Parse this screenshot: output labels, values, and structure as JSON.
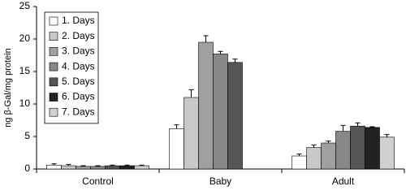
{
  "chart_data": {
    "type": "bar",
    "y_label": "ng β-Gal/mg protein",
    "categories": [
      "Control",
      "Baby",
      "Adult"
    ],
    "series": [
      {
        "name": "1. Days",
        "color": "#ffffff",
        "values": [
          0.6,
          6.2,
          2.0
        ],
        "errors": [
          0.2,
          0.6,
          0.3
        ]
      },
      {
        "name": "2. Days",
        "color": "#c8c8c8",
        "values": [
          0.5,
          11.0,
          3.3
        ],
        "errors": [
          0.2,
          1.2,
          0.4
        ]
      },
      {
        "name": "3. Days",
        "color": "#a0a0a0",
        "values": [
          0.4,
          19.5,
          4.0
        ],
        "errors": [
          0.1,
          1.0,
          0.3
        ]
      },
      {
        "name": "4. Days",
        "color": "#888888",
        "values": [
          0.4,
          17.7,
          5.8
        ],
        "errors": [
          0.1,
          0.4,
          0.9
        ]
      },
      {
        "name": "5. Days",
        "color": "#555555",
        "values": [
          0.5,
          16.4,
          6.6
        ],
        "errors": [
          0.1,
          0.5,
          0.5
        ]
      },
      {
        "name": "6. Days",
        "color": "#222222",
        "values": [
          0.5,
          null,
          6.4
        ],
        "errors": [
          0.1,
          null,
          0.1
        ]
      },
      {
        "name": "7. Days",
        "color": "#d0d0d0",
        "values": [
          0.5,
          null,
          4.9
        ],
        "errors": [
          0.1,
          null,
          0.4
        ]
      }
    ],
    "ylim": [
      0,
      25
    ],
    "yticks": [
      0,
      5,
      10,
      15,
      20,
      25
    ],
    "grid": false,
    "legend": "upper left"
  }
}
